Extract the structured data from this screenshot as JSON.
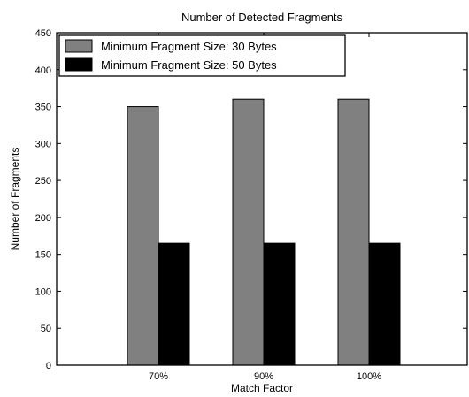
{
  "chart_data": {
    "type": "bar",
    "title": "Number of Detected Fragments",
    "xlabel": "Match Factor",
    "ylabel": "Number of Fragments",
    "categories": [
      "70%",
      "90%",
      "100%"
    ],
    "series": [
      {
        "name": "Minimum Fragment Size: 30 Bytes",
        "values": [
          350,
          360,
          360
        ],
        "color": "#808080"
      },
      {
        "name": "Minimum Fragment Size: 50 Bytes",
        "values": [
          165,
          165,
          165
        ],
        "color": "#000000"
      }
    ],
    "ylim": [
      0,
      450
    ],
    "yticks": [
      0,
      50,
      100,
      150,
      200,
      250,
      300,
      350,
      400,
      450
    ],
    "grid": false,
    "legend_position": "top-left"
  }
}
